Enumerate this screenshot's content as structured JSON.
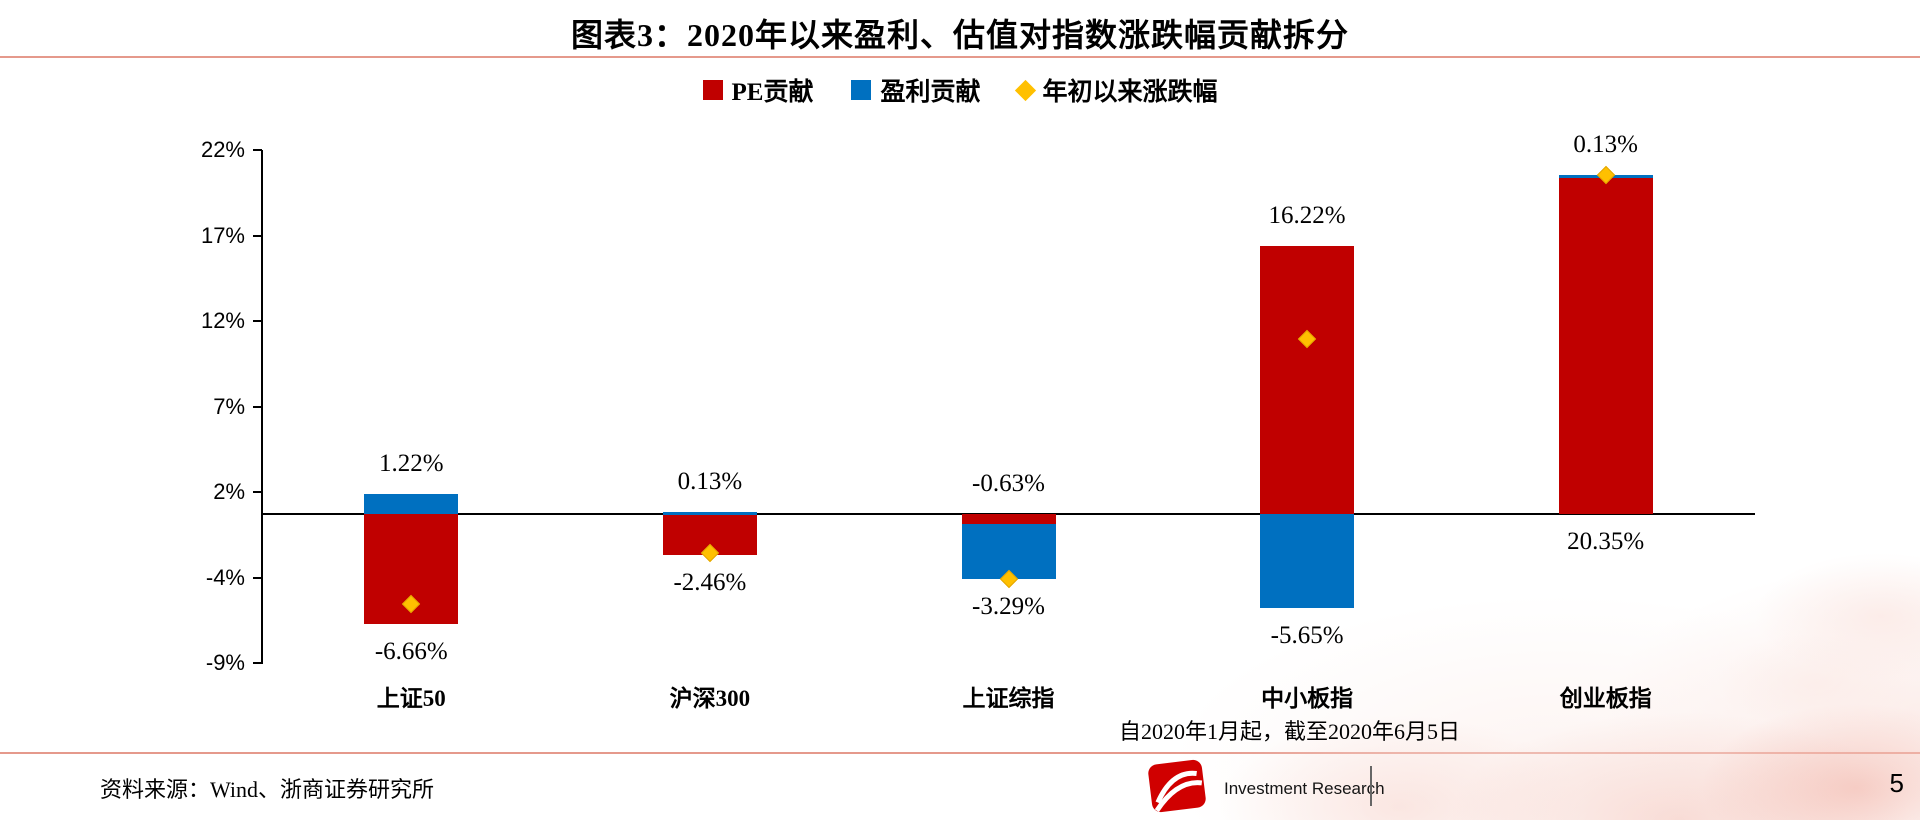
{
  "title": "图表3：2020年以来盈利、估值对指数涨跌幅贡献拆分",
  "legend": {
    "items": [
      {
        "label": "PE贡献",
        "marker": "square",
        "color": "#c00000"
      },
      {
        "label": "盈利贡献",
        "marker": "square",
        "color": "#0070c0"
      },
      {
        "label": "年初以来涨跌幅",
        "marker": "diamond",
        "color": "#ffc000"
      }
    ]
  },
  "chart_data": {
    "type": "bar",
    "stacked": true,
    "categories": [
      "上证50",
      "沪深300",
      "上证综指",
      "中小板指",
      "创业板指"
    ],
    "series": [
      {
        "name": "PE贡献",
        "kind": "bar",
        "color": "#c00000",
        "values": [
          -6.66,
          -2.46,
          -0.63,
          16.22,
          20.35
        ]
      },
      {
        "name": "盈利贡献",
        "kind": "bar",
        "color": "#0070c0",
        "values": [
          1.22,
          0.13,
          -3.29,
          -5.65,
          0.13
        ]
      },
      {
        "name": "年初以来涨跌幅",
        "kind": "scatter-diamond",
        "color": "#ffc000",
        "values": [
          -5.44,
          -2.33,
          -3.92,
          10.57,
          20.48
        ]
      }
    ],
    "labels_top": [
      "1.22%",
      "0.13%",
      "-0.63%",
      "16.22%",
      "0.13%"
    ],
    "labels_bottom": [
      "-6.66%",
      "-2.46%",
      "-3.29%",
      "-5.65%",
      "20.35%"
    ],
    "y_ticks": [
      "22%",
      "17%",
      "12%",
      "7%",
      "2%",
      "-4%",
      "-9%"
    ],
    "ylim": [
      -9,
      22
    ],
    "legend_position": "top",
    "grid": false
  },
  "note_right": "自2020年1月起，截至2020年6月5日",
  "footer": {
    "source": "资料来源：Wind、浙商证券研究所",
    "brand": "Investment Research",
    "page": "5"
  },
  "colors": {
    "accent_line": "#e5998c",
    "bar_red": "#c00000",
    "bar_blue": "#0070c0",
    "diamond_gold": "#ffc000"
  }
}
